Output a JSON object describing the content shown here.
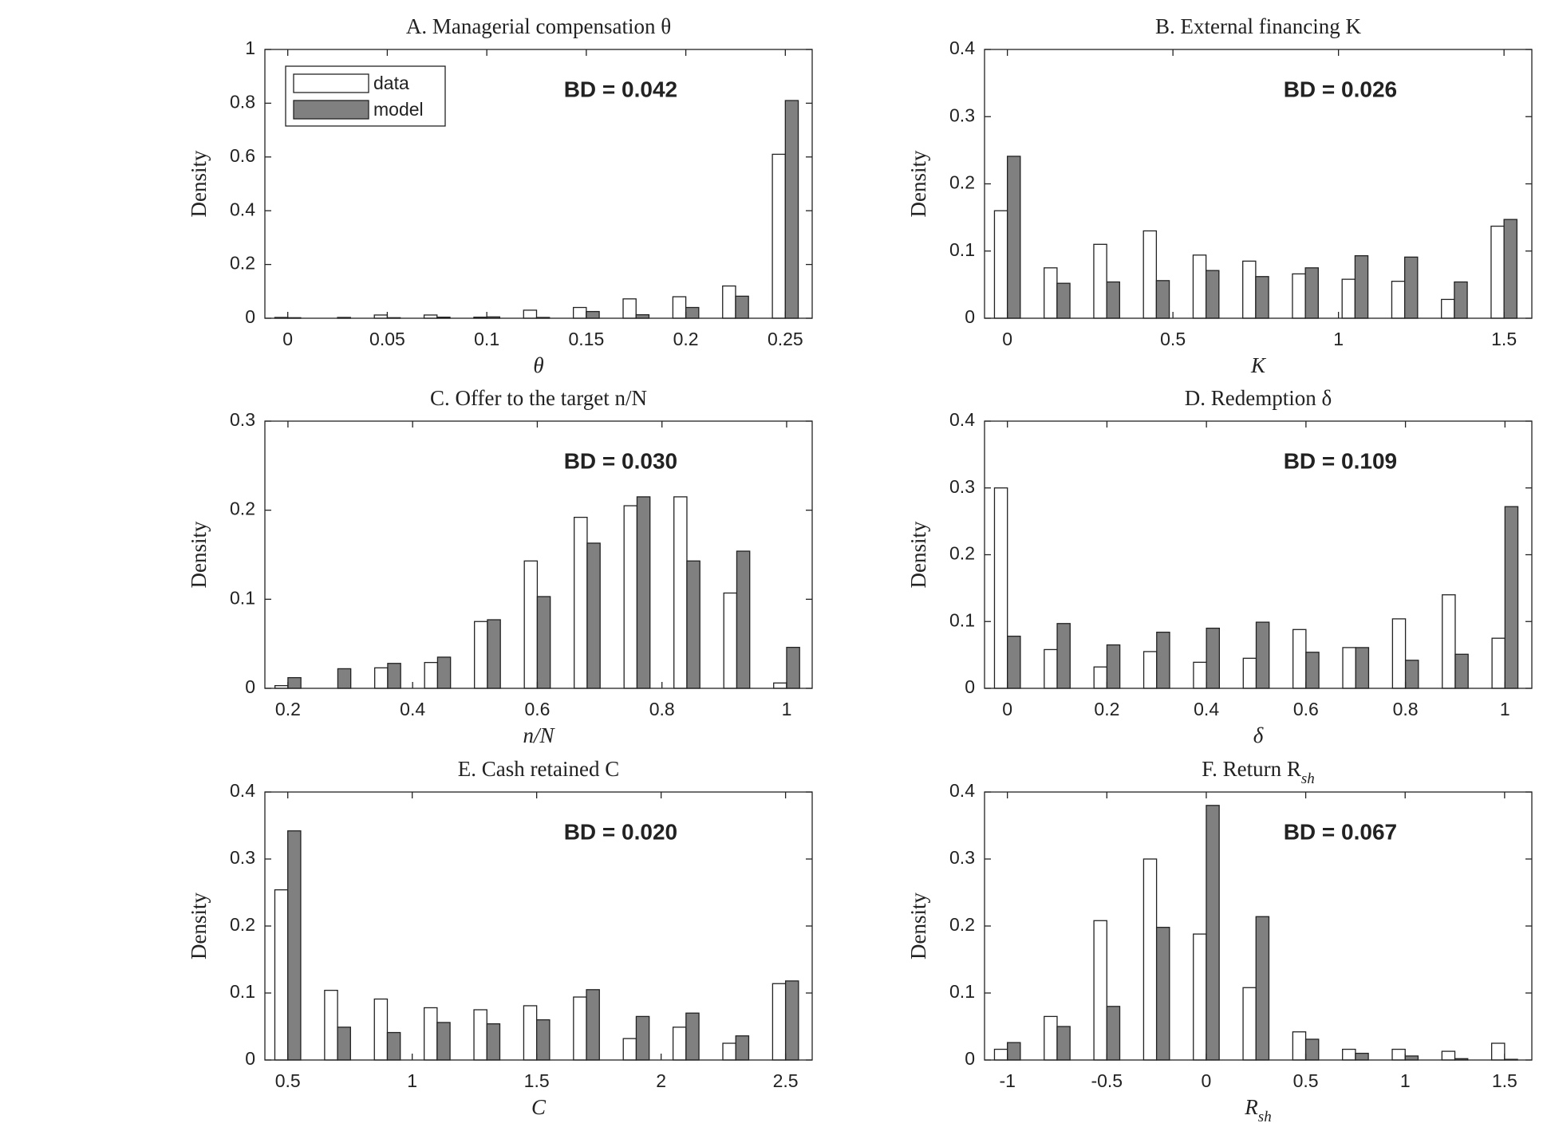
{
  "chart_data": [
    {
      "type": "bar",
      "title": "A. Managerial compensation θ",
      "annotation": "BD = 0.042",
      "xlabel": "θ",
      "ylabel": "Density",
      "legend": "upper left",
      "x": [
        0,
        0.025,
        0.05,
        0.075,
        0.1,
        0.125,
        0.15,
        0.175,
        0.2,
        0.225,
        0.25
      ],
      "series": [
        {
          "name": "data",
          "color": "#ffffff",
          "values": [
            0.003,
            0,
            0.012,
            0.012,
            0.004,
            0.03,
            0.04,
            0.072,
            0.08,
            0.12,
            0.61
          ]
        },
        {
          "name": "model",
          "color": "#808080",
          "values": [
            0.002,
            0.003,
            0.002,
            0.004,
            0.005,
            0.003,
            0.025,
            0.013,
            0.04,
            0.082,
            0.81
          ]
        }
      ],
      "xlim": [
        -0.0115,
        0.2635
      ],
      "ylim": [
        0,
        1
      ],
      "xticks": [
        0,
        0.05,
        0.1,
        0.15,
        0.2,
        0.25
      ],
      "yticks": [
        0,
        0.2,
        0.4,
        0.6,
        0.8,
        1
      ]
    },
    {
      "type": "bar",
      "title": "B. External financing K",
      "annotation": "BD = 0.026",
      "xlabel": "K",
      "ylabel": "Density",
      "x": [
        0,
        0.15,
        0.3,
        0.45,
        0.6,
        0.75,
        0.9,
        1.05,
        1.2,
        1.35,
        1.5
      ],
      "series": [
        {
          "name": "data",
          "color": "#ffffff",
          "values": [
            0.16,
            0.075,
            0.11,
            0.13,
            0.094,
            0.085,
            0.066,
            0.058,
            0.055,
            0.028,
            0.137
          ]
        },
        {
          "name": "model",
          "color": "#808080",
          "values": [
            0.241,
            0.052,
            0.054,
            0.056,
            0.071,
            0.062,
            0.075,
            0.093,
            0.091,
            0.054,
            0.147
          ]
        }
      ],
      "xlim": [
        -0.069,
        1.584
      ],
      "ylim": [
        0,
        0.4
      ],
      "xticks": [
        0,
        0.5,
        1,
        1.5
      ],
      "yticks": [
        0,
        0.1,
        0.2,
        0.3,
        0.4
      ]
    },
    {
      "type": "bar",
      "title": "C. Offer to the target n/N",
      "annotation": "BD = 0.030",
      "xlabel": "n/N",
      "ylabel": "Density",
      "x": [
        0.2,
        0.28,
        0.36,
        0.44,
        0.52,
        0.6,
        0.68,
        0.76,
        0.84,
        0.92,
        1
      ],
      "series": [
        {
          "name": "data",
          "color": "#ffffff",
          "values": [
            0.003,
            0,
            0.023,
            0.029,
            0.075,
            0.143,
            0.192,
            0.205,
            0.215,
            0.107,
            0.006
          ]
        },
        {
          "name": "model",
          "color": "#808080",
          "values": [
            0.012,
            0.022,
            0.028,
            0.035,
            0.077,
            0.103,
            0.163,
            0.215,
            0.143,
            0.154,
            0.046
          ]
        }
      ],
      "xlim": [
        0.163,
        1.041
      ],
      "ylim": [
        0,
        0.3
      ],
      "xticks": [
        0.2,
        0.4,
        0.6,
        0.8,
        1
      ],
      "yticks": [
        0,
        0.1,
        0.2,
        0.3
      ]
    },
    {
      "type": "bar",
      "title": "D. Redemption δ",
      "annotation": "BD = 0.109",
      "xlabel": "δ",
      "ylabel": "Density",
      "x": [
        0,
        0.1,
        0.2,
        0.3,
        0.4,
        0.5,
        0.6,
        0.7,
        0.8,
        0.9,
        1
      ],
      "series": [
        {
          "name": "data",
          "color": "#ffffff",
          "values": [
            0.3,
            0.058,
            0.032,
            0.055,
            0.039,
            0.045,
            0.088,
            0.061,
            0.104,
            0.14,
            0.075
          ]
        },
        {
          "name": "model",
          "color": "#808080",
          "values": [
            0.078,
            0.097,
            0.065,
            0.084,
            0.09,
            0.099,
            0.054,
            0.061,
            0.042,
            0.051,
            0.272
          ]
        }
      ],
      "xlim": [
        -0.046,
        1.054
      ],
      "ylim": [
        0,
        0.4
      ],
      "xticks": [
        0,
        0.2,
        0.4,
        0.6,
        0.8,
        1
      ],
      "yticks": [
        0,
        0.1,
        0.2,
        0.3,
        0.4
      ]
    },
    {
      "type": "bar",
      "title": "E. Cash retained C",
      "annotation": "BD = 0.020",
      "xlabel": "C",
      "ylabel": "Density",
      "x": [
        0.5,
        0.7,
        0.9,
        1.1,
        1.3,
        1.5,
        1.7,
        1.9,
        2.1,
        2.3,
        2.5
      ],
      "series": [
        {
          "name": "data",
          "color": "#ffffff",
          "values": [
            0.254,
            0.104,
            0.091,
            0.078,
            0.075,
            0.081,
            0.094,
            0.032,
            0.049,
            0.025,
            0.114
          ]
        },
        {
          "name": "model",
          "color": "#808080",
          "values": [
            0.342,
            0.049,
            0.041,
            0.056,
            0.054,
            0.06,
            0.105,
            0.065,
            0.07,
            0.036,
            0.118
          ]
        }
      ],
      "xlim": [
        0.408,
        2.607
      ],
      "ylim": [
        0,
        0.4
      ],
      "xticks": [
        0.5,
        1,
        1.5,
        2,
        2.5
      ],
      "yticks": [
        0,
        0.1,
        0.2,
        0.3,
        0.4
      ]
    },
    {
      "type": "bar",
      "title": "F. Return R",
      "title_sub": "sh",
      "annotation": "BD = 0.067",
      "xlabel": "R",
      "xlabel_sub": "sh",
      "ylabel": "Density",
      "x": [
        -1,
        -0.75,
        -0.5,
        -0.25,
        0,
        0.25,
        0.5,
        0.75,
        1,
        1.25,
        1.5
      ],
      "series": [
        {
          "name": "data",
          "color": "#ffffff",
          "values": [
            0.016,
            0.065,
            0.208,
            0.3,
            0.188,
            0.108,
            0.042,
            0.016,
            0.016,
            0.013,
            0.025
          ]
        },
        {
          "name": "model",
          "color": "#808080",
          "values": [
            0.026,
            0.05,
            0.08,
            0.198,
            0.38,
            0.214,
            0.031,
            0.01,
            0.006,
            0.002,
            0.001
          ]
        }
      ],
      "xlim": [
        -1.115,
        1.637
      ],
      "ylim": [
        0,
        0.4
      ],
      "xticks": [
        -1,
        -0.5,
        0,
        0.5,
        1,
        1.5
      ],
      "yticks": [
        0,
        0.1,
        0.2,
        0.3,
        0.4
      ]
    }
  ]
}
